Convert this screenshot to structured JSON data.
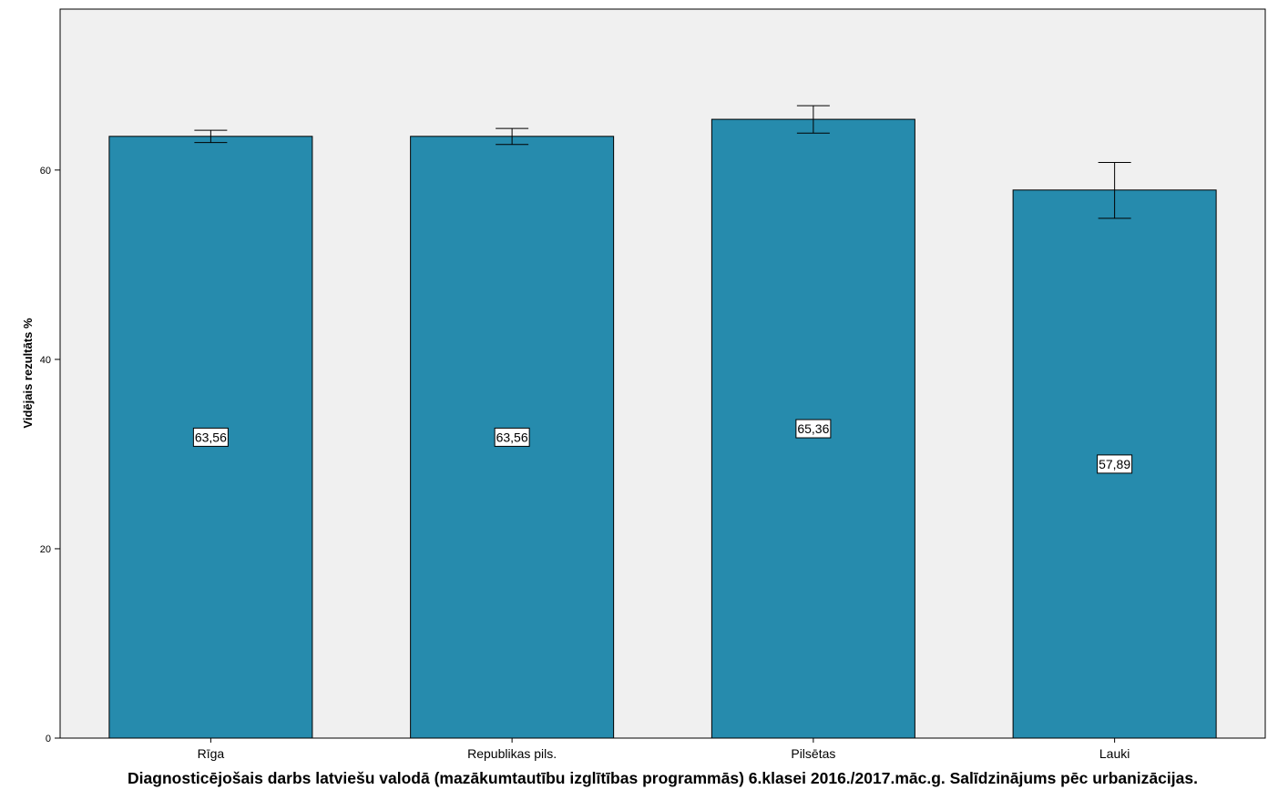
{
  "chart_data": {
    "type": "bar",
    "title": "Diagnosticējošais darbs latviešu valodā (mazākumtautību izglītības programmās) 6.klasei 2016./2017.māc.g. Salīdzinājums pēc urbanizācijas.",
    "xlabel": "",
    "ylabel": "Vidējais rezultāts %",
    "categories": [
      "Rīga",
      "Republikas pils.",
      "Pilsētas",
      "Lauki"
    ],
    "values": [
      63.56,
      63.56,
      65.36,
      57.89
    ],
    "value_labels": [
      "63,56",
      "63,56",
      "65,36",
      "57,89"
    ],
    "error_bars": [
      {
        "low": 62.9,
        "high": 64.2
      },
      {
        "low": 62.7,
        "high": 64.4
      },
      {
        "low": 63.9,
        "high": 66.8
      },
      {
        "low": 54.9,
        "high": 60.8
      }
    ],
    "ylim": [
      0,
      77
    ],
    "yticks": [
      0,
      20,
      40,
      60
    ],
    "grid": false,
    "legend": "none",
    "colors": {
      "bar": "#268bad",
      "plot_background": "#f0f0f0",
      "axis": "#000000"
    }
  }
}
